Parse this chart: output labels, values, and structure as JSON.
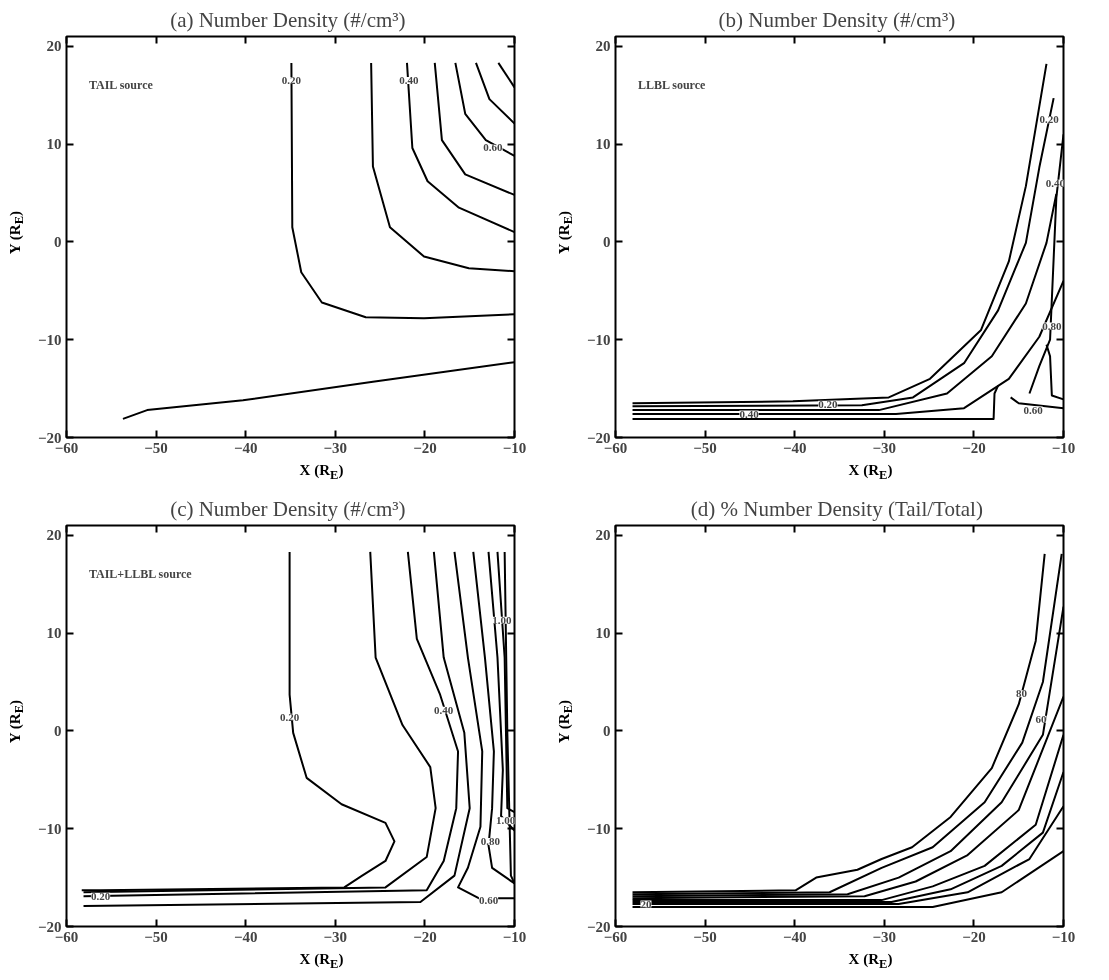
{
  "chart_data": [
    {
      "type": "line",
      "title": "(a)  Number Density (#/cm³)",
      "xlabel": "X (R$_{E}$)",
      "ylabel": "Y (R$_{E}$)",
      "xlim": [
        -60,
        -10
      ],
      "ylim": [
        -20,
        21
      ],
      "xticks": [
        -60,
        -50,
        -40,
        -30,
        -20,
        -10
      ],
      "yticks": [
        -20,
        -10,
        0,
        10,
        20
      ],
      "line_style": "solid",
      "annotations": [
        "TAIL source",
        {
          "text": "0.20",
          "x": -34.9,
          "y": 16.5
        },
        {
          "text": "0.40",
          "x": -21.8,
          "y": 16.5
        },
        {
          "text": "0.60",
          "x": -12.4,
          "y": 9.6
        }
      ],
      "series": [
        {
          "color": "#000000",
          "x": [
            -34.9,
            -34.8,
            -33.8,
            -31.5,
            -26.6,
            -20.1,
            -10
          ],
          "values": [
            18.3,
            1.5,
            -3.1,
            -6.2,
            -7.7,
            -7.8,
            -7.4
          ]
        },
        {
          "color": "#000000",
          "x": [
            -53.7,
            -51.0,
            -40.3,
            -25.8,
            -10
          ],
          "values": [
            -18.1,
            -17.2,
            -16.2,
            -14.3,
            -12.3
          ]
        },
        {
          "color": "#000000",
          "x": [
            -26.0,
            -25.8,
            -23.9,
            -20.1,
            -15.1,
            -10
          ],
          "values": [
            18.3,
            7.7,
            1.5,
            -1.5,
            -2.7,
            -3.0
          ]
        },
        {
          "color": "#000000",
          "x": [
            -22.0,
            -21.4,
            -19.7,
            -16.2,
            -10
          ],
          "values": [
            18.3,
            9.6,
            6.2,
            3.5,
            1.0
          ]
        },
        {
          "color": "#000000",
          "x": [
            -18.9,
            -18.1,
            -15.5,
            -10
          ],
          "values": [
            18.3,
            10.4,
            6.9,
            4.8
          ]
        },
        {
          "color": "#000000",
          "x": [
            -16.6,
            -15.5,
            -13.2,
            -10
          ],
          "values": [
            18.3,
            13.1,
            10.4,
            8.8
          ]
        },
        {
          "color": "#000000",
          "x": [
            -14.3,
            -12.8,
            -10
          ],
          "values": [
            18.3,
            14.6,
            12.1
          ]
        },
        {
          "color": "#000000",
          "x": [
            -11.8,
            -10
          ],
          "values": [
            18.3,
            15.8
          ]
        }
      ]
    },
    {
      "type": "line",
      "title": "(b)  Number Density (#/cm³)",
      "xlabel": "X (R$_{E}$)",
      "ylabel": "Y (R$_{E}$)",
      "xlim": [
        -60,
        -10
      ],
      "ylim": [
        -20,
        21
      ],
      "xticks": [
        -60,
        -50,
        -40,
        -30,
        -20,
        -10
      ],
      "yticks": [
        -20,
        -10,
        0,
        10,
        20
      ],
      "line_style": "solid",
      "annotations": [
        "LLBL source",
        {
          "text": "0.20",
          "x": -11.6,
          "y": 12.5
        },
        {
          "text": "0.40",
          "x": -10.9,
          "y": 6.0
        },
        {
          "text": "0.80",
          "x": -11.3,
          "y": -8.6
        },
        {
          "text": "0.60",
          "x": -13.4,
          "y": -17.2
        },
        {
          "text": "0.20",
          "x": -36.3,
          "y": -16.6
        },
        {
          "text": "0.40",
          "x": -45.1,
          "y": -17.6
        }
      ],
      "series": [
        {
          "color": "#000000",
          "x": [
            -58.1,
            -40.2,
            -29.5,
            -24.9,
            -19.2,
            -16.1,
            -14.2,
            -11.9
          ],
          "values": [
            -16.5,
            -16.3,
            -15.9,
            -14.0,
            -9.0,
            -2.0,
            5.7,
            18.2
          ]
        },
        {
          "color": "#000000",
          "x": [
            -58.1,
            -32.5,
            -26.8,
            -21.1,
            -17.3,
            -14.2,
            -12.7,
            -11.1
          ],
          "values": [
            -16.8,
            -16.7,
            -15.9,
            -12.4,
            -7.0,
            -0.1,
            7.6,
            14.7
          ]
        },
        {
          "color": "#000000",
          "x": [
            -58.1,
            -30.6,
            -23.0,
            -18.0,
            -14.2,
            -11.9,
            -10.8
          ],
          "values": [
            -17.2,
            -17.2,
            -15.5,
            -11.7,
            -6.3,
            -0.1,
            4.9
          ]
        },
        {
          "color": "#000000",
          "x": [
            -58.1,
            -28.7,
            -21.1,
            -16.1,
            -12.7,
            -10.0
          ],
          "values": [
            -17.6,
            -17.6,
            -17.0,
            -14.0,
            -9.7,
            -4.0
          ]
        },
        {
          "color": "#000000",
          "x": [
            -58.1,
            -17.8,
            -17.7,
            -17.3
          ],
          "values": [
            -18.1,
            -18.1,
            -15.5,
            -14.7
          ]
        },
        {
          "color": "#000000",
          "x": [
            -15.9,
            -15.0,
            -10.0
          ],
          "values": [
            -15.9,
            -16.5,
            -17.0
          ]
        },
        {
          "color": "#000000",
          "x": [
            -13.8,
            -12.7,
            -11.5,
            -10.8,
            -10.0
          ],
          "values": [
            -15.5,
            -12.7,
            -10.0,
            4.5,
            11.0
          ]
        },
        {
          "color": "#000000",
          "x": [
            -11.9,
            -11.5,
            -11.3,
            -10.0
          ],
          "values": [
            -10.5,
            -11.7,
            -15.7,
            -16.1
          ]
        }
      ]
    },
    {
      "type": "line",
      "title": "(c)  Number Density (#/cm³)",
      "xlabel": "X (R$_{E}$)",
      "ylabel": "Y (R$_{E}$)",
      "xlim": [
        -60,
        -10
      ],
      "ylim": [
        -20,
        21
      ],
      "xticks": [
        -60,
        -50,
        -40,
        -30,
        -20,
        -10
      ],
      "yticks": [
        -20,
        -10,
        0,
        10,
        20
      ],
      "line_style": "solid",
      "annotations": [
        "TAIL+LLBL source",
        {
          "text": "0.20",
          "x": -35.1,
          "y": 1.4
        },
        {
          "text": "0.40",
          "x": -17.9,
          "y": 2.1
        },
        {
          "text": "0.80",
          "x": -12.7,
          "y": -11.3
        },
        {
          "text": "1.00",
          "x": -11.0,
          "y": -9.2
        },
        {
          "text": "1.00",
          "x": -11.4,
          "y": 11.3
        },
        {
          "text": "0.60",
          "x": -12.9,
          "y": -17.3
        },
        {
          "text": "0.20",
          "x": -56.2,
          "y": -16.9
        }
      ],
      "series": [
        {
          "color": "#000000",
          "x": [
            -35.1,
            -35.1,
            -34.7,
            -33.2,
            -29.3,
            -24.4,
            -23.4,
            -24.4,
            -27.0,
            -29.0,
            -56.2,
            -58.3
          ],
          "values": [
            18.3,
            3.7,
            -0.2,
            -4.8,
            -7.5,
            -9.4,
            -11.3,
            -13.3,
            -14.8,
            -16.0,
            -16.3,
            -16.3
          ]
        },
        {
          "color": "#000000",
          "x": [
            -26.1,
            -25.5,
            -22.5,
            -19.4,
            -18.8,
            -19.8,
            -24.4,
            -58.1
          ],
          "values": [
            18.3,
            7.5,
            0.6,
            -3.7,
            -7.9,
            -12.9,
            -16.0,
            -16.5
          ]
        },
        {
          "color": "#000000",
          "x": [
            -21.9,
            -20.9,
            -18.3,
            -16.3,
            -16.5,
            -17.9,
            -19.8,
            -58.1
          ],
          "values": [
            18.3,
            9.4,
            3.7,
            -2.1,
            -7.9,
            -13.3,
            -16.3,
            -16.9
          ]
        },
        {
          "color": "#000000",
          "x": [
            -19.0,
            -17.9,
            -15.6,
            -15.0,
            -16.7,
            -20.5,
            -58.1
          ],
          "values": [
            18.3,
            7.5,
            -0.2,
            -7.9,
            -14.8,
            -17.5,
            -17.9
          ]
        },
        {
          "color": "#000000",
          "x": [
            -16.7,
            -15.2,
            -13.6,
            -13.8,
            -15.2,
            -16.3,
            -14.0,
            -10.0
          ],
          "values": [
            18.3,
            7.5,
            -2.1,
            -9.8,
            -14.0,
            -16.0,
            -17.1,
            -17.1
          ]
        },
        {
          "color": "#000000",
          "x": [
            -14.6,
            -13.3,
            -12.3,
            -12.5,
            -12.9,
            -12.5,
            -10.0
          ],
          "values": [
            18.3,
            7.5,
            -2.1,
            -7.9,
            -11.7,
            -14.0,
            -15.6
          ]
        },
        {
          "color": "#000000",
          "x": [
            -12.9,
            -11.9,
            -11.3,
            -11.5,
            -10.0
          ],
          "values": [
            18.3,
            7.5,
            -4.0,
            -8.7,
            -10.2
          ]
        },
        {
          "color": "#000000",
          "x": [
            -11.9,
            -11.1,
            -10.8,
            -10.0
          ],
          "values": [
            18.3,
            7.5,
            -7.9,
            -8.3
          ]
        },
        {
          "color": "#000000",
          "x": [
            -11.1,
            -10.8,
            -10.4,
            -10.0
          ],
          "values": [
            18.3,
            -0.2,
            -14.8,
            -15.6
          ]
        }
      ]
    },
    {
      "type": "line",
      "title": "(d)  % Number Density (Tail/Total)",
      "xlabel": "X (R$_{E}$)",
      "ylabel": "Y (R$_{E}$)",
      "xlim": [
        -60,
        -10
      ],
      "ylim": [
        -20,
        21
      ],
      "xticks": [
        -60,
        -50,
        -40,
        -30,
        -20,
        -10
      ],
      "yticks": [
        -20,
        -10,
        0,
        10,
        20
      ],
      "line_style": "solid",
      "annotations": [
        {
          "text": "80",
          "x": -14.7,
          "y": 3.8
        },
        {
          "text": "60",
          "x": -12.5,
          "y": 1.2
        },
        {
          "text": "20",
          "x": -56.6,
          "y": -17.7
        }
      ],
      "series": [
        {
          "color": "#000000",
          "x": [
            -58.1,
            -39.9,
            -37.6,
            -33.0,
            -30.3,
            -26.9,
            -22.6,
            -18.0,
            -15.0,
            -13.1,
            -12.1
          ],
          "values": [
            -16.5,
            -16.3,
            -15.0,
            -14.2,
            -13.1,
            -11.9,
            -8.8,
            -3.8,
            2.7,
            9.2,
            18.1
          ]
        },
        {
          "color": "#000000",
          "x": [
            -58.1,
            -36.1,
            -30.3,
            -24.6,
            -18.8,
            -14.6,
            -12.3,
            -10.2
          ],
          "values": [
            -16.7,
            -16.5,
            -14.0,
            -11.9,
            -7.3,
            -1.2,
            5.0,
            18.1
          ]
        },
        {
          "color": "#000000",
          "x": [
            -58.1,
            -34.1,
            -28.4,
            -22.6,
            -16.9,
            -12.3,
            -10.0
          ],
          "values": [
            -16.9,
            -16.7,
            -15.0,
            -12.3,
            -7.3,
            -0.4,
            12.7
          ]
        },
        {
          "color": "#000000",
          "x": [
            -58.1,
            -32.2,
            -26.5,
            -20.7,
            -15.0,
            -10.0
          ],
          "values": [
            -17.1,
            -16.9,
            -15.4,
            -12.7,
            -8.1,
            3.5
          ]
        },
        {
          "color": "#000000",
          "x": [
            -58.1,
            -30.3,
            -24.6,
            -18.8,
            -13.1,
            -10.0
          ],
          "values": [
            -17.3,
            -17.3,
            -15.9,
            -13.8,
            -9.6,
            -0.4
          ]
        },
        {
          "color": "#000000",
          "x": [
            -58.1,
            -29.2,
            -22.6,
            -16.9,
            -12.3,
            -10.0
          ],
          "values": [
            -17.5,
            -17.5,
            -16.2,
            -13.8,
            -10.4,
            -4.2
          ]
        },
        {
          "color": "#000000",
          "x": [
            -58.1,
            -28.4,
            -20.7,
            -13.8,
            -10.0
          ],
          "values": [
            -17.7,
            -17.7,
            -16.5,
            -13.1,
            -7.7
          ]
        },
        {
          "color": "#000000",
          "x": [
            -58.1,
            -24.6,
            -16.9,
            -10.0
          ],
          "values": [
            -18.0,
            -18.0,
            -16.5,
            -12.3
          ]
        }
      ]
    }
  ]
}
